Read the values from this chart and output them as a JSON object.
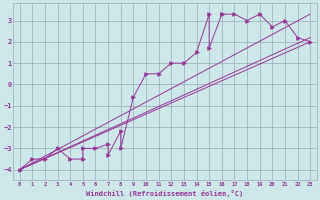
{
  "xlabel": "Windchill (Refroidissement éolien,°C)",
  "bg_color": "#cce8e8",
  "grid_color": "#99aabb",
  "line_color": "#993399",
  "xlim": [
    -0.5,
    23.5
  ],
  "ylim": [
    -4.5,
    3.8
  ],
  "xticks": [
    0,
    1,
    2,
    3,
    4,
    5,
    6,
    7,
    8,
    9,
    10,
    11,
    12,
    13,
    14,
    15,
    16,
    17,
    18,
    19,
    20,
    21,
    22,
    23
  ],
  "yticks": [
    -4,
    -3,
    -2,
    -1,
    0,
    1,
    2,
    3
  ],
  "scatter_x": [
    0,
    1,
    2,
    3,
    4,
    5,
    5,
    6,
    7,
    7,
    8,
    8,
    9,
    10,
    11,
    12,
    13,
    14,
    15,
    15,
    16,
    16,
    17,
    18,
    19,
    20,
    21,
    22,
    23
  ],
  "scatter_y": [
    -4,
    -3.5,
    -3.5,
    -3.0,
    -3.5,
    -3.5,
    -3.0,
    -3.0,
    -2.8,
    -3.3,
    -2.2,
    -3.0,
    -0.6,
    0.5,
    0.5,
    1.0,
    1.0,
    1.5,
    3.3,
    1.7,
    3.3,
    3.3,
    3.3,
    3.0,
    3.3,
    2.7,
    3.0,
    2.2,
    2.0
  ],
  "line1_x": [
    0,
    23
  ],
  "line1_y": [
    -4.0,
    2.0
  ],
  "line2_x": [
    0,
    23
  ],
  "line2_y": [
    -4.0,
    3.3
  ],
  "line3_x": [
    0,
    23
  ],
  "line3_y": [
    -4.0,
    2.2
  ]
}
